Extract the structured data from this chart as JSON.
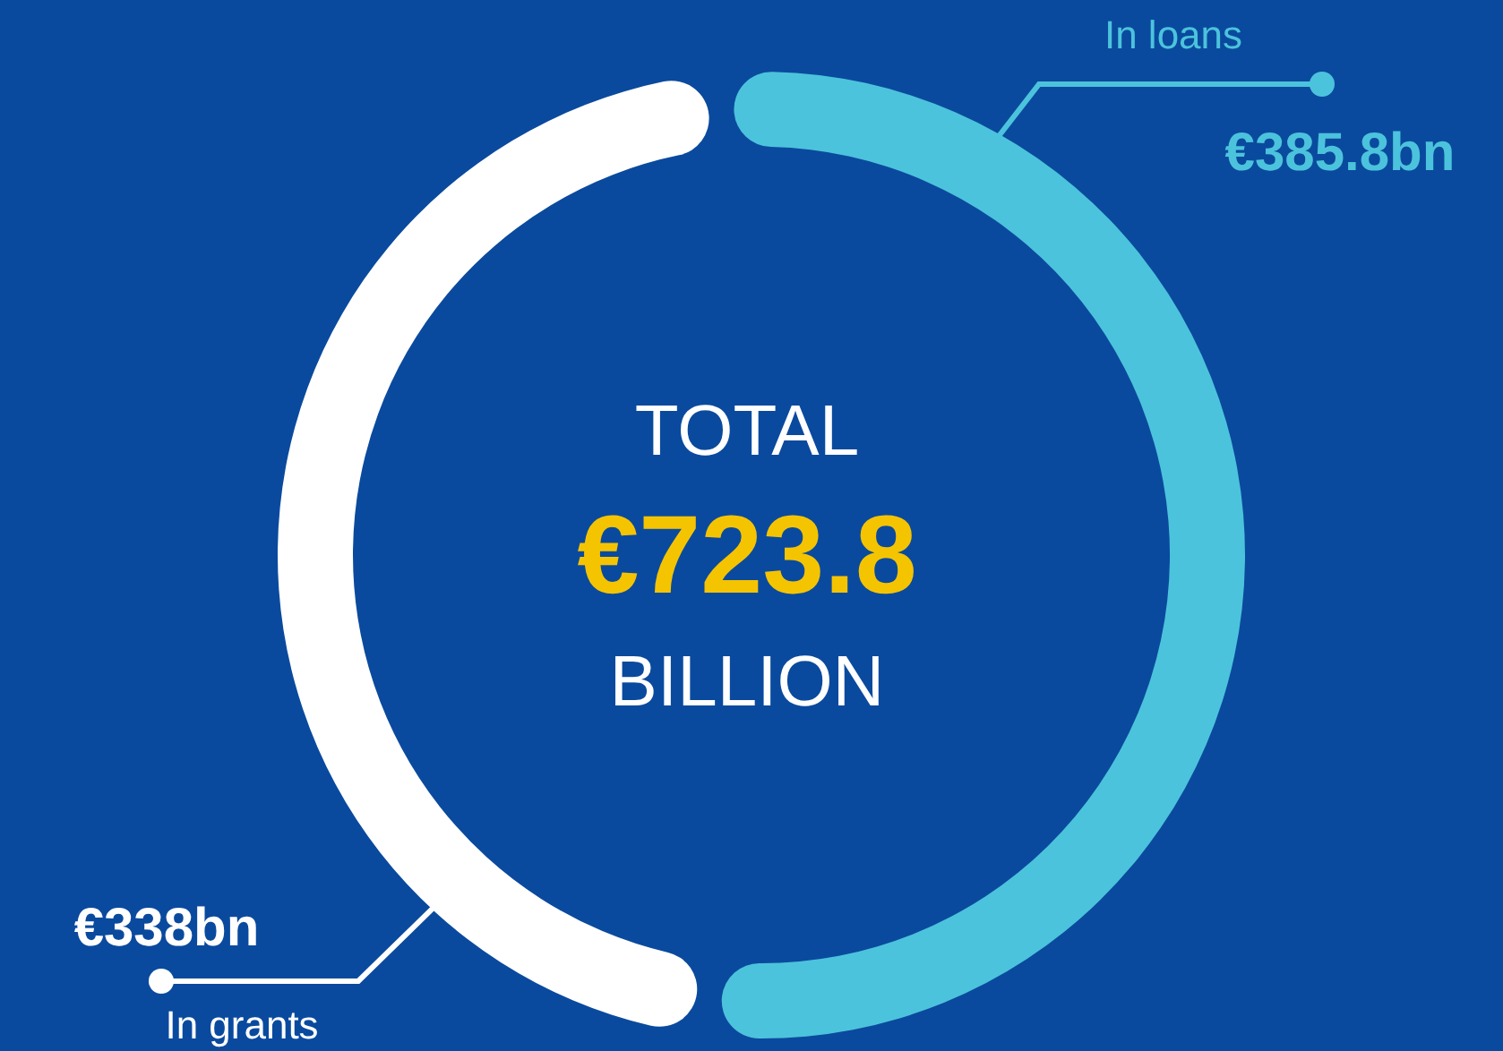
{
  "chart_data": {
    "type": "donut",
    "categories": [
      "In loans",
      "In grants"
    ],
    "values": [
      385.8,
      338
    ],
    "colors": [
      "#4cc3dc",
      "#ffffff"
    ],
    "value_labels": [
      "€385.8bn",
      "€338bn"
    ],
    "annotations": [
      "TOTAL",
      "€723.8",
      "BILLION"
    ]
  }
}
